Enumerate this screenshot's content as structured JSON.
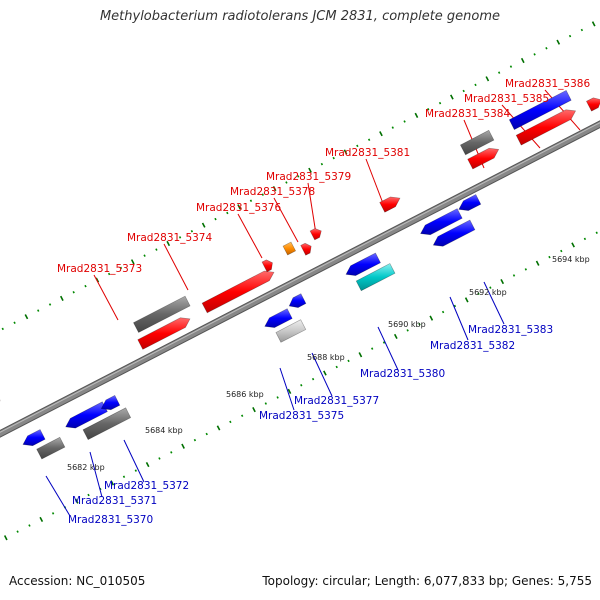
{
  "title": "Methylobacterium radiotolerans JCM 2831, complete genome",
  "footer": {
    "accession": "Accession: NC_010505",
    "topology": "Topology: circular; Length: 6,077,833 bp; Genes: 5,755"
  },
  "colors": {
    "top_strand_label": "#e00000",
    "bottom_strand_label": "#0000c0",
    "forward_gene": "#ff0000",
    "reverse_gene": "#0000ff",
    "pseudogene": "#666666",
    "rna_gene": "#00c8c8",
    "other_gene": "#ff8c00",
    "axis": "#888888",
    "tick_major": "#007000",
    "tick_minor": "#008800"
  },
  "kbp_labels": [
    "5682 kbp",
    "5684 kbp",
    "5686 kbp",
    "5688 kbp",
    "5690 kbp",
    "5692 kbp",
    "5694 kbp"
  ],
  "genes_top": [
    "Mrad2831_5373",
    "Mrad2831_5374",
    "Mrad2831_5376",
    "Mrad2831_5378",
    "Mrad2831_5379",
    "Mrad2831_5381",
    "Mrad2831_5384",
    "Mrad2831_5385",
    "Mrad2831_5386"
  ],
  "genes_bottom": [
    "Mrad2831_5370",
    "Mrad2831_5371",
    "Mrad2831_5372",
    "Mrad2831_5375",
    "Mrad2831_5377",
    "Mrad2831_5380",
    "Mrad2831_5382",
    "Mrad2831_5383"
  ]
}
